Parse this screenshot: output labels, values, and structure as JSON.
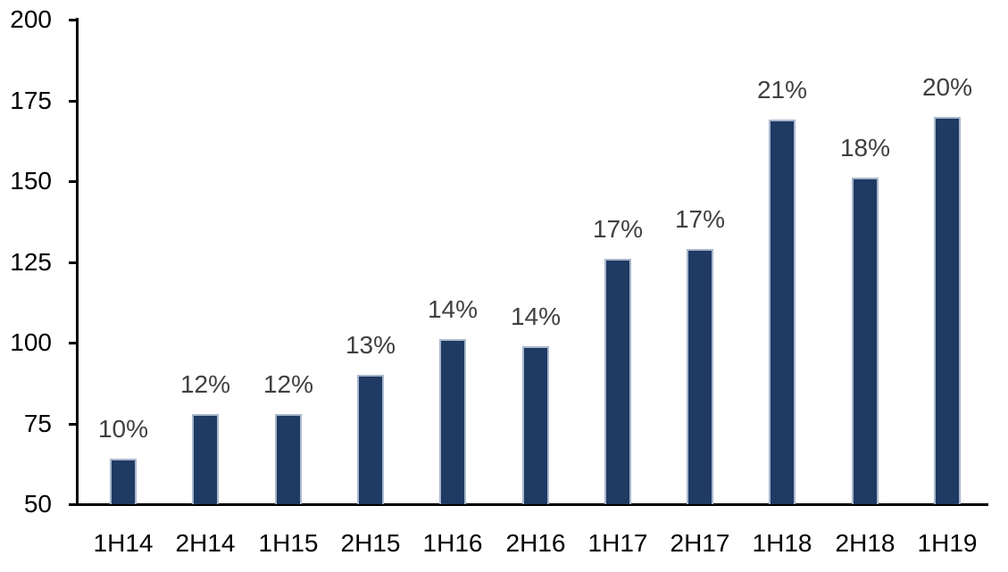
{
  "chart_data": {
    "type": "bar",
    "categories": [
      "1H14",
      "2H14",
      "1H15",
      "2H15",
      "1H16",
      "2H16",
      "1H17",
      "2H17",
      "1H18",
      "2H18",
      "1H19"
    ],
    "values": [
      64,
      78,
      78,
      90,
      101,
      99,
      126,
      129,
      169,
      151,
      170
    ],
    "bar_labels": [
      "10%",
      "12%",
      "12%",
      "13%",
      "14%",
      "14%",
      "17%",
      "17%",
      "21%",
      "18%",
      "20%"
    ],
    "title": "",
    "xlabel": "",
    "ylabel": "",
    "ylim": [
      50,
      200
    ],
    "yticks": [
      50,
      75,
      100,
      125,
      150,
      175,
      200
    ],
    "ytick_labels": [
      "50",
      "75",
      "100",
      "125",
      "150",
      "175",
      "200"
    ],
    "grid": false,
    "legend": false,
    "label_position": "outside-end",
    "colors": {
      "bar_fill": "#1F3A63",
      "bar_border": "#A9B7CC",
      "axis": "#000000",
      "ytick_label": "#000000",
      "xtick_label": "#000000",
      "data_label": "#404040",
      "background": "#FFFFFF"
    }
  }
}
